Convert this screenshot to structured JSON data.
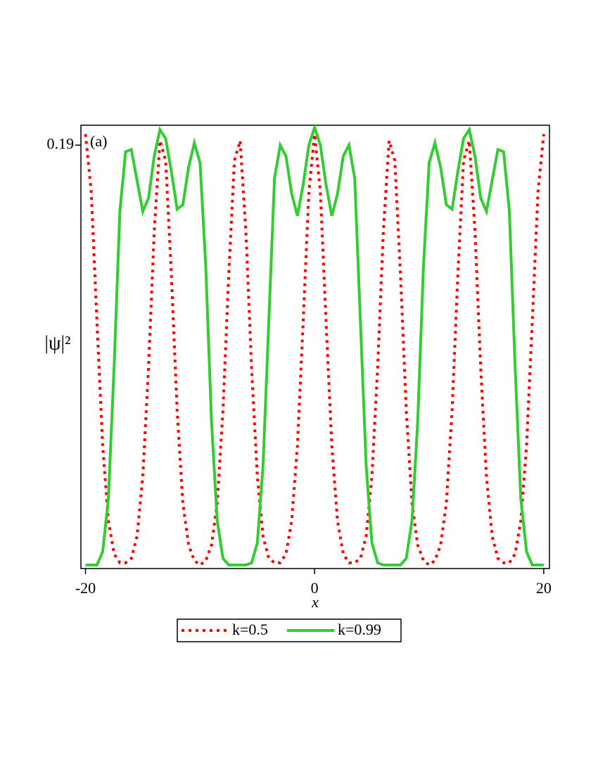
{
  "chart_data": {
    "type": "line",
    "annotation": "(a)",
    "xlabel": "x",
    "ylabel": "|ψ|²",
    "xlim": [
      -20.4,
      20.5
    ],
    "ylim": [
      -0.0016,
      0.199
    ],
    "xticks": [
      -20,
      0,
      20
    ],
    "yticks": [
      0.19
    ],
    "grid": false,
    "legend": "bottom",
    "x": [
      -20,
      -19.5,
      -19,
      -18.5,
      -18,
      -17.5,
      -17,
      -16.5,
      -16,
      -15.5,
      -15,
      -14.5,
      -14,
      -13.5,
      -13,
      -12.5,
      -12,
      -11.5,
      -11,
      -10.5,
      -10,
      -9.5,
      -9,
      -8.5,
      -8,
      -7.5,
      -7,
      -6.5,
      -6,
      -5.5,
      -5,
      -4.5,
      -4,
      -3.5,
      -3,
      -2.5,
      -2,
      -1.5,
      -1,
      -0.5,
      0,
      0.5,
      1,
      1.5,
      2,
      2.5,
      3,
      3.5,
      4,
      4.5,
      5,
      5.5,
      6,
      6.5,
      7,
      7.5,
      8,
      8.5,
      9,
      9.5,
      10,
      10.5,
      11,
      11.5,
      12,
      12.5,
      13,
      13.5,
      14,
      14.5,
      15,
      15.5,
      16,
      16.5,
      17,
      17.5,
      18,
      18.5,
      19,
      19.5,
      20
    ],
    "series": [
      {
        "name": "k=0.5",
        "color": "#ff0000",
        "style": "dotted",
        "values": [
          0.195,
          0.169,
          0.11,
          0.054,
          0.02,
          0.005,
          0.001,
          0.001,
          0.003,
          0.013,
          0.04,
          0.089,
          0.151,
          0.192,
          0.183,
          0.131,
          0.07,
          0.028,
          0.009,
          0.002,
          0.0,
          0.002,
          0.009,
          0.028,
          0.07,
          0.131,
          0.183,
          0.192,
          0.151,
          0.089,
          0.04,
          0.013,
          0.003,
          0.001,
          0.001,
          0.005,
          0.02,
          0.054,
          0.11,
          0.169,
          0.195,
          0.169,
          0.11,
          0.054,
          0.02,
          0.005,
          0.001,
          0.001,
          0.003,
          0.013,
          0.04,
          0.089,
          0.151,
          0.192,
          0.183,
          0.131,
          0.07,
          0.028,
          0.009,
          0.002,
          0.0,
          0.002,
          0.009,
          0.028,
          0.07,
          0.131,
          0.183,
          0.192,
          0.151,
          0.089,
          0.04,
          0.013,
          0.003,
          0.001,
          0.001,
          0.005,
          0.02,
          0.054,
          0.11,
          0.169,
          0.195
        ]
      },
      {
        "name": "k=0.99",
        "color": "#33cc33",
        "style": "solid",
        "values": [
          0,
          0,
          0,
          0.006,
          0.03,
          0.09,
          0.16,
          0.187,
          0.188,
          0.174,
          0.16,
          0.166,
          0.185,
          0.197,
          0.193,
          0.178,
          0.161,
          0.163,
          0.18,
          0.191,
          0.182,
          0.135,
          0.065,
          0.02,
          0.003,
          0,
          0,
          0,
          0,
          0.001,
          0.01,
          0.045,
          0.11,
          0.175,
          0.19,
          0.185,
          0.168,
          0.158,
          0.172,
          0.19,
          0.198,
          0.19,
          0.172,
          0.158,
          0.168,
          0.185,
          0.19,
          0.175,
          0.11,
          0.045,
          0.01,
          0.001,
          0,
          0,
          0,
          0,
          0.003,
          0.02,
          0.065,
          0.135,
          0.182,
          0.191,
          0.18,
          0.163,
          0.161,
          0.178,
          0.193,
          0.197,
          0.185,
          0.166,
          0.16,
          0.174,
          0.188,
          0.187,
          0.16,
          0.09,
          0.03,
          0.006,
          0,
          0,
          0
        ]
      }
    ]
  }
}
